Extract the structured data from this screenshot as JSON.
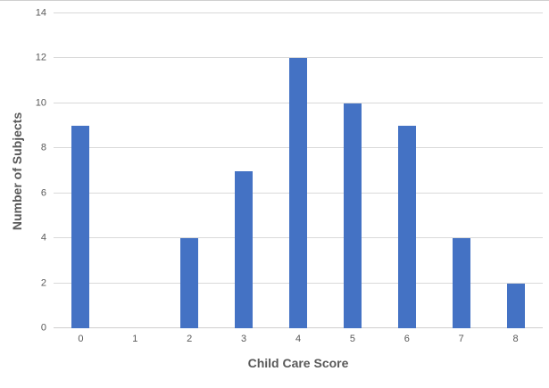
{
  "chart_data": {
    "type": "bar",
    "title": "",
    "categories": [
      "0",
      "1",
      "2",
      "3",
      "4",
      "5",
      "6",
      "7",
      "8"
    ],
    "values": [
      9,
      0,
      4,
      7,
      12,
      10,
      9,
      4,
      2
    ],
    "xlabel": "Child Care Score",
    "ylabel": "Number of Subjects",
    "ylim": [
      0,
      14
    ],
    "yticks": [
      0,
      2,
      4,
      6,
      8,
      10,
      12,
      14
    ],
    "grid": true,
    "legend": "none",
    "colors": {
      "bar": "#4472C4",
      "gridline": "#D9D9D9",
      "axis_line": "#D0CECE",
      "tick_label": "#595959",
      "axis_title": "#595959",
      "background": "#FFFFFF"
    }
  }
}
